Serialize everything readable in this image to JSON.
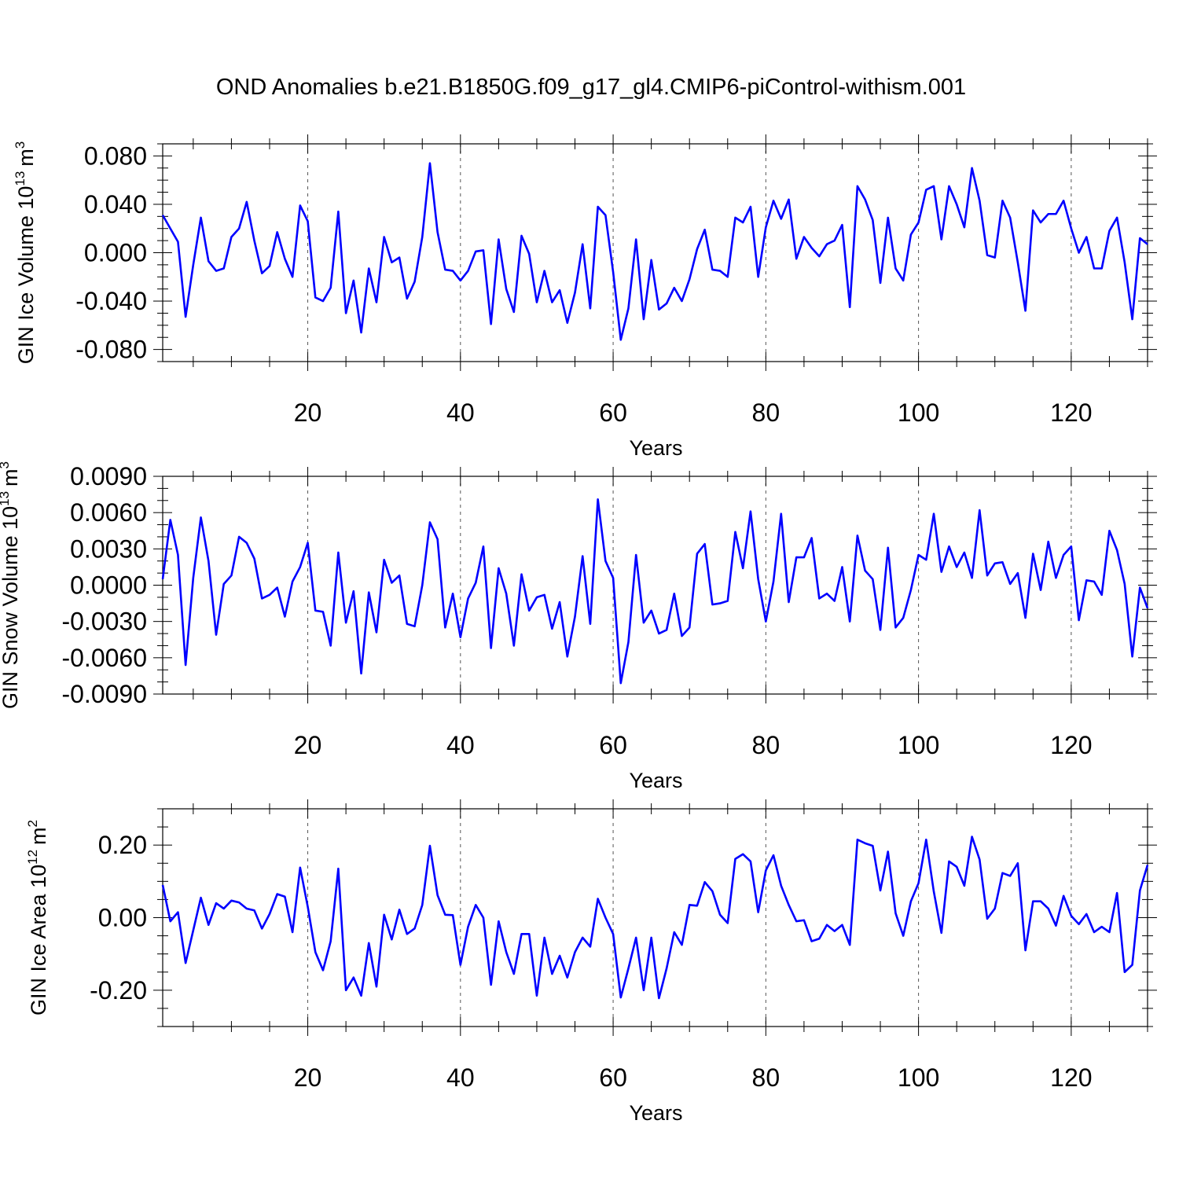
{
  "figure": {
    "title": "OND Anomalies b.e21.B1850G.f09_g17_gl4.CMIP6-piControl-withism.001"
  },
  "colors": {
    "series": "#0000ff",
    "axis": "#000000",
    "grid": "#555555"
  },
  "chart_data": [
    {
      "type": "line",
      "ylabel": "GIN Ice Volume 10",
      "ylabel_exp": "13",
      "ylabel_unit": "m",
      "ylabel_unit_exp": "3",
      "xlabel": "Years",
      "xlim": [
        1,
        130
      ],
      "ylim": [
        -0.09,
        0.09
      ],
      "x_ticks": [
        20,
        40,
        60,
        80,
        100,
        120
      ],
      "x_tick_labels": [
        "20",
        "40",
        "60",
        "80",
        "100",
        "120"
      ],
      "y_ticks": [
        -0.08,
        -0.04,
        0.0,
        0.04,
        0.08
      ],
      "y_tick_labels": [
        "-0.080",
        "-0.040",
        "0.000",
        "0.040",
        "0.080"
      ],
      "y_minor_step": 0.01,
      "grid": "dashed vertical at x ticks",
      "series": [
        {
          "x_start": 1,
          "values": [
            0.031,
            0.02,
            0.009,
            -0.053,
            -0.01,
            0.029,
            -0.007,
            -0.015,
            -0.013,
            0.013,
            0.02,
            0.042,
            0.01,
            -0.017,
            -0.011,
            0.017,
            -0.005,
            -0.02,
            0.039,
            0.026,
            -0.037,
            -0.04,
            -0.029,
            0.034,
            -0.05,
            -0.023,
            -0.066,
            -0.013,
            -0.041,
            0.013,
            -0.008,
            -0.004,
            -0.038,
            -0.024,
            0.013,
            0.074,
            0.017,
            -0.014,
            -0.015,
            -0.023,
            -0.015,
            0.001,
            0.002,
            -0.059,
            0.011,
            -0.03,
            -0.049,
            0.014,
            -0.001,
            -0.041,
            -0.015,
            -0.041,
            -0.031,
            -0.058,
            -0.033,
            0.007,
            -0.046,
            0.038,
            0.031,
            -0.016,
            -0.072,
            -0.046,
            0.011,
            -0.055,
            -0.006,
            -0.047,
            -0.042,
            -0.029,
            -0.04,
            -0.022,
            0.003,
            0.019,
            -0.014,
            -0.015,
            -0.02,
            0.029,
            0.025,
            0.038,
            -0.02,
            0.021,
            0.043,
            0.028,
            0.044,
            -0.005,
            0.013,
            0.004,
            -0.003,
            0.007,
            0.01,
            0.023,
            -0.045,
            0.055,
            0.044,
            0.027,
            -0.025,
            0.029,
            -0.013,
            -0.023,
            0.015,
            0.025,
            0.052,
            0.055,
            0.011,
            0.055,
            0.04,
            0.021,
            0.07,
            0.043,
            -0.002,
            -0.004,
            0.043,
            0.029,
            -0.008,
            -0.048,
            0.035,
            0.025,
            0.032,
            0.032,
            0.043,
            0.02,
            0.0,
            0.013,
            -0.013,
            -0.013,
            0.018,
            0.029,
            -0.008,
            -0.055,
            0.012,
            0.007
          ]
        }
      ]
    },
    {
      "type": "line",
      "ylabel": "GIN Snow Volume 10",
      "ylabel_exp": "13",
      "ylabel_unit": "m",
      "ylabel_unit_exp": "3",
      "xlabel": "Years",
      "xlim": [
        1,
        130
      ],
      "ylim": [
        -0.009,
        0.009
      ],
      "x_ticks": [
        20,
        40,
        60,
        80,
        100,
        120
      ],
      "x_tick_labels": [
        "20",
        "40",
        "60",
        "80",
        "100",
        "120"
      ],
      "y_ticks": [
        -0.009,
        -0.006,
        -0.003,
        0.0,
        0.003,
        0.006,
        0.009
      ],
      "y_tick_labels": [
        "-0.0090",
        "-0.0060",
        "-0.0030",
        "0.0000",
        "0.0030",
        "0.0060",
        "0.0090"
      ],
      "y_minor_step": 0.001,
      "grid": "dashed vertical at x ticks",
      "series": [
        {
          "x_start": 1,
          "values": [
            0.0005,
            0.0054,
            0.0025,
            -0.0066,
            0.0006,
            0.0056,
            0.002,
            -0.0041,
            0.0001,
            0.0008,
            0.004,
            0.0035,
            0.0022,
            -0.0011,
            -0.0008,
            -0.0002,
            -0.0026,
            0.0003,
            0.0015,
            0.0035,
            -0.0021,
            -0.0022,
            -0.005,
            0.0027,
            -0.0031,
            -0.0005,
            -0.0073,
            -0.0006,
            -0.0039,
            0.0021,
            0.0002,
            0.0008,
            -0.0032,
            -0.0034,
            0.0,
            0.0052,
            0.0038,
            -0.0035,
            -0.0007,
            -0.0043,
            -0.0011,
            0.0002,
            0.0032,
            -0.0052,
            0.0014,
            -0.0007,
            -0.005,
            0.0009,
            -0.0021,
            -0.001,
            -0.0008,
            -0.0036,
            -0.0014,
            -0.0059,
            -0.0026,
            0.0024,
            -0.0032,
            0.0071,
            0.002,
            0.0006,
            -0.0081,
            -0.0047,
            0.0025,
            -0.0031,
            -0.0021,
            -0.004,
            -0.0037,
            -0.0007,
            -0.0042,
            -0.0035,
            0.0026,
            0.0034,
            -0.0016,
            -0.0015,
            -0.0013,
            0.0044,
            0.0014,
            0.0061,
            0.0005,
            -0.003,
            0.0003,
            0.0059,
            -0.0014,
            0.0023,
            0.0023,
            0.0039,
            -0.0011,
            -0.0007,
            -0.0013,
            0.0015,
            -0.003,
            0.0041,
            0.0012,
            0.0005,
            -0.0037,
            0.0031,
            -0.0035,
            -0.0027,
            -0.0004,
            0.0025,
            0.0021,
            0.0059,
            0.0011,
            0.0032,
            0.0015,
            0.0027,
            0.0006,
            0.0062,
            0.0008,
            0.0018,
            0.0019,
            0.0001,
            0.001,
            -0.0027,
            0.0026,
            -0.0004,
            0.0036,
            0.0006,
            0.0025,
            0.0032,
            -0.0029,
            0.0004,
            0.0003,
            -0.0008,
            0.0045,
            0.0029,
            0.0001,
            -0.0059,
            -0.0002,
            -0.0019
          ]
        }
      ]
    },
    {
      "type": "line",
      "ylabel": "GIN Ice Area 10",
      "ylabel_exp": "12",
      "ylabel_unit": "m",
      "ylabel_unit_exp": "2",
      "xlabel": "Years",
      "xlim": [
        1,
        130
      ],
      "ylim": [
        -0.3,
        0.3
      ],
      "x_ticks": [
        20,
        40,
        60,
        80,
        100,
        120
      ],
      "x_tick_labels": [
        "20",
        "40",
        "60",
        "80",
        "100",
        "120"
      ],
      "y_ticks": [
        -0.2,
        0.0,
        0.2
      ],
      "y_tick_labels": [
        "-0.20",
        "0.00",
        "0.20"
      ],
      "y_minor_step": 0.05,
      "grid": "dashed vertical at x ticks",
      "series": [
        {
          "x_start": 1,
          "values": [
            0.09,
            -0.01,
            0.015,
            -0.125,
            -0.035,
            0.055,
            -0.02,
            0.04,
            0.025,
            0.047,
            0.042,
            0.025,
            0.02,
            -0.03,
            0.01,
            0.065,
            0.058,
            -0.04,
            0.138,
            0.03,
            -0.095,
            -0.145,
            -0.065,
            0.135,
            -0.2,
            -0.165,
            -0.215,
            -0.07,
            -0.19,
            0.008,
            -0.06,
            0.022,
            -0.045,
            -0.03,
            0.035,
            0.198,
            0.062,
            0.008,
            0.007,
            -0.13,
            -0.025,
            0.035,
            0.0,
            -0.185,
            -0.01,
            -0.095,
            -0.155,
            -0.045,
            -0.045,
            -0.215,
            -0.055,
            -0.155,
            -0.105,
            -0.165,
            -0.095,
            -0.055,
            -0.08,
            0.052,
            0.0,
            -0.045,
            -0.22,
            -0.14,
            -0.055,
            -0.2,
            -0.055,
            -0.222,
            -0.14,
            -0.04,
            -0.075,
            0.035,
            0.033,
            0.098,
            0.073,
            0.008,
            -0.015,
            0.162,
            0.175,
            0.155,
            0.015,
            0.13,
            0.172,
            0.088,
            0.035,
            -0.01,
            -0.007,
            -0.065,
            -0.058,
            -0.02,
            -0.037,
            -0.02,
            -0.075,
            0.215,
            0.205,
            0.198,
            0.075,
            0.182,
            0.012,
            -0.05,
            0.045,
            0.095,
            0.215,
            0.072,
            -0.042,
            0.155,
            0.14,
            0.088,
            0.223,
            0.16,
            -0.003,
            0.025,
            0.123,
            0.115,
            0.15,
            -0.09,
            0.045,
            0.045,
            0.025,
            -0.022,
            0.06,
            0.005,
            -0.018,
            0.01,
            -0.04,
            -0.025,
            -0.04,
            0.068,
            -0.15,
            -0.13,
            0.075,
            0.145
          ]
        }
      ]
    }
  ]
}
